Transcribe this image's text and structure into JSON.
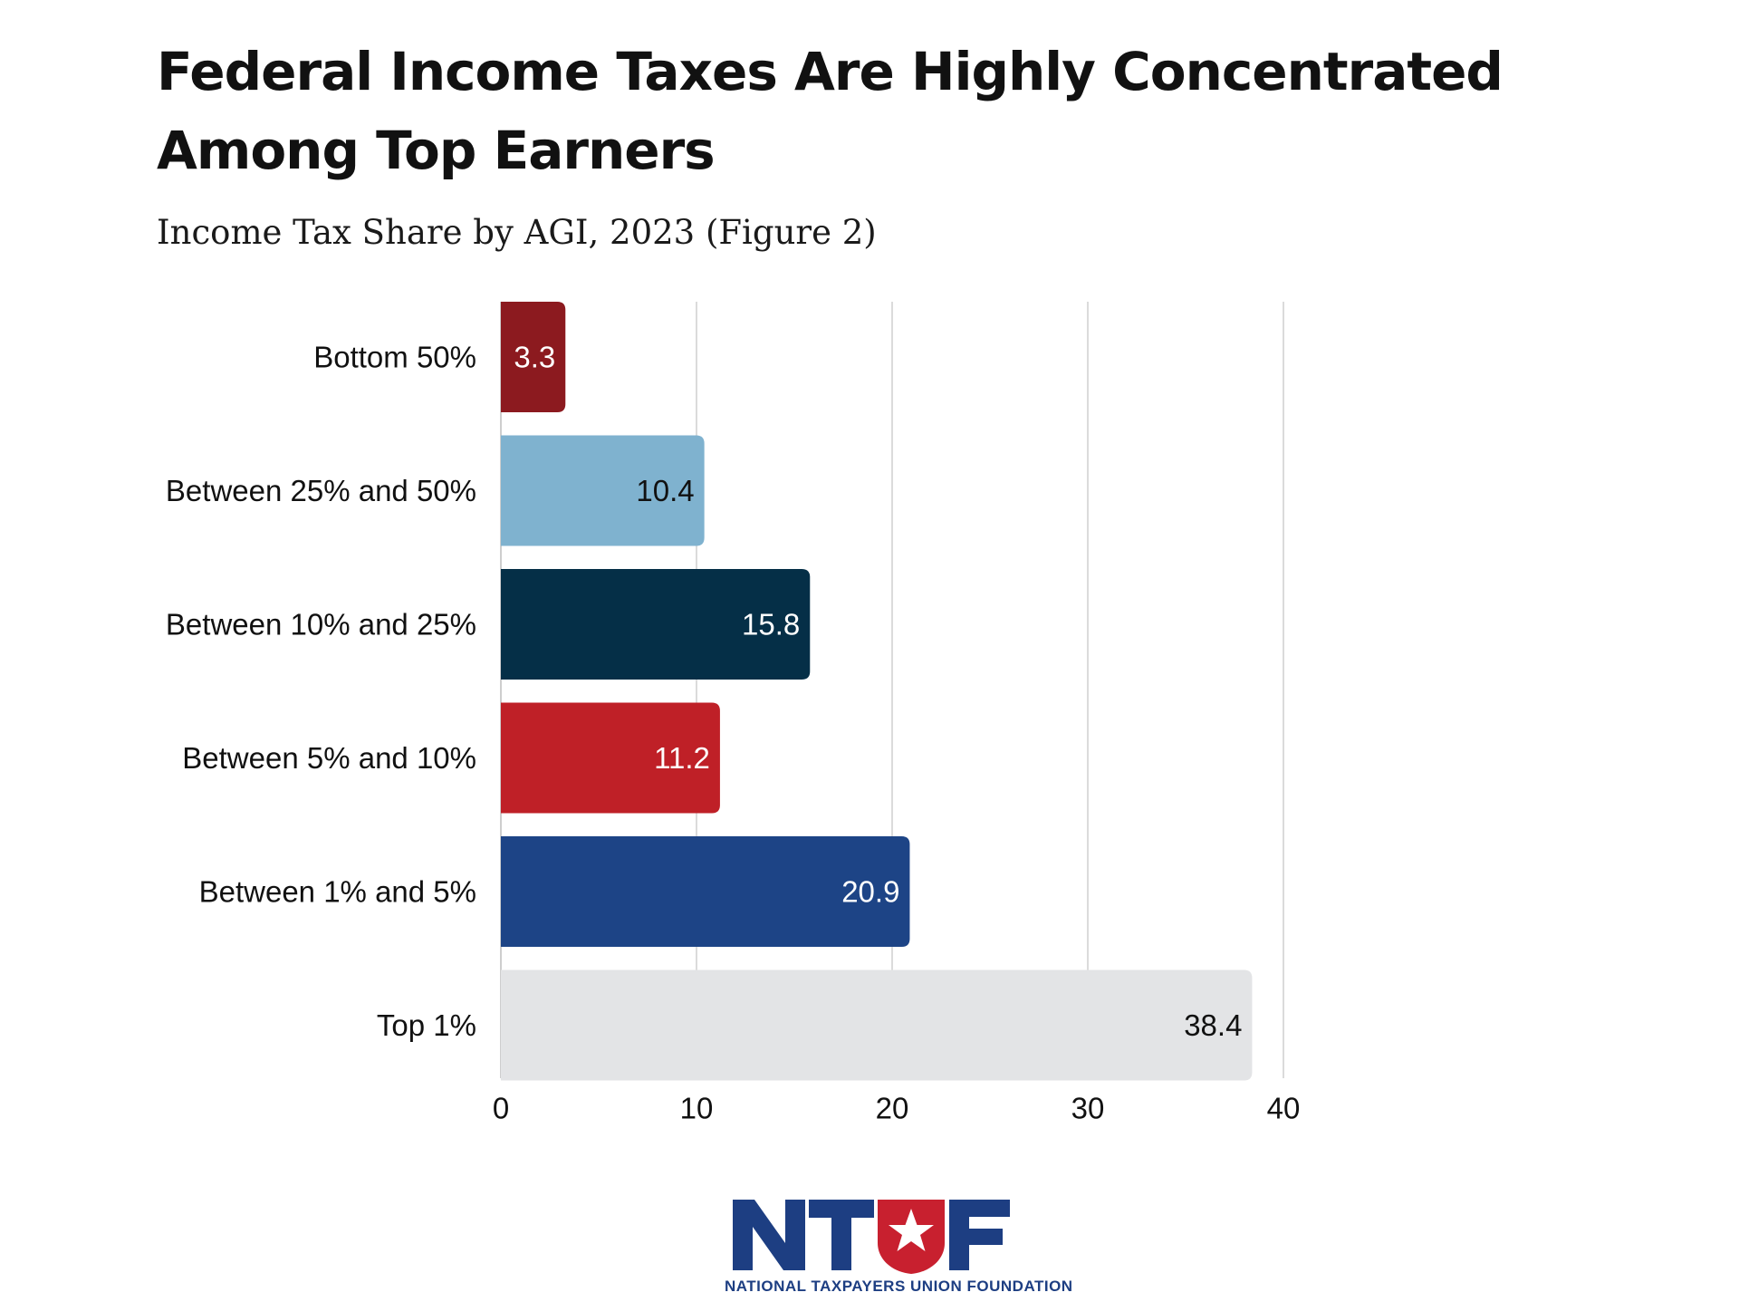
{
  "title": "Federal Income Taxes Are Highly Concentrated Among Top Earners",
  "subtitle": "Income Tax Share by AGI, 2023 (Figure 2)",
  "logo": {
    "mark": "NTUF",
    "organization": "NATIONAL TAXPAYERS UNION FOUNDATION",
    "icon": "star-shield-icon"
  },
  "colors": {
    "dark_red": "#8c1a1f",
    "light_blue": "#7fb2cf",
    "dark_navy": "#052f47",
    "red": "#bf2027",
    "blue": "#1d4486",
    "light_gray": "#e3e4e6",
    "brand_blue": "#1d3e82",
    "brand_red": "#c8202f"
  },
  "chart_data": {
    "type": "bar",
    "orientation": "horizontal",
    "title": "Federal Income Taxes Are Highly Concentrated Among Top Earners",
    "subtitle": "Income Tax Share by AGI, 2023 (Figure 2)",
    "xlabel": "",
    "ylabel": "",
    "xlim": [
      0,
      40
    ],
    "ticks": [
      0,
      10,
      20,
      30,
      40
    ],
    "grid": true,
    "legend": "none",
    "categories": [
      "Bottom 50%",
      "Between 25% and 50%",
      "Between 10% and 25%",
      "Between 5% and 10%",
      "Between 1% and 5%",
      "Top 1%"
    ],
    "values": [
      3.3,
      10.4,
      15.8,
      11.2,
      20.9,
      38.4
    ],
    "value_labels": [
      "3.3",
      "10.4",
      "15.8",
      "11.2",
      "20.9",
      "38.4"
    ],
    "bar_colors": [
      "#8c1a1f",
      "#7fb2cf",
      "#052f47",
      "#bf2027",
      "#1d4486",
      "#e3e4e6"
    ],
    "label_colors": [
      "#ffffff",
      "#111111",
      "#ffffff",
      "#ffffff",
      "#ffffff",
      "#111111"
    ]
  }
}
